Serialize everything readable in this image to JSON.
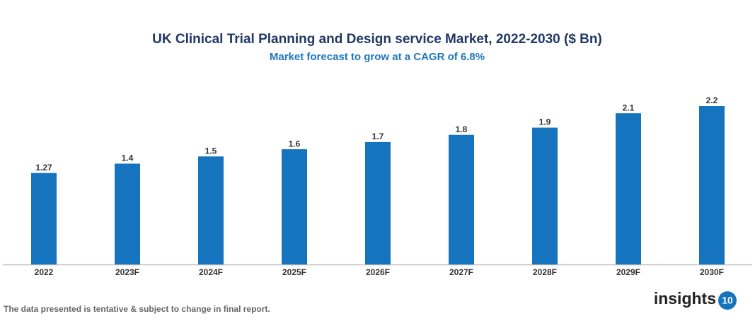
{
  "chart_data": {
    "type": "bar",
    "title": "UK Clinical Trial Planning and Design service Market, 2022-2030 ($ Bn)",
    "subtitle": "Market forecast to grow at a CAGR of 6.8%",
    "categories": [
      "2022",
      "2023F",
      "2024F",
      "2025F",
      "2026F",
      "2027F",
      "2028F",
      "2029F",
      "2030F"
    ],
    "values": [
      1.27,
      1.4,
      1.5,
      1.6,
      1.7,
      1.8,
      1.9,
      2.1,
      2.2
    ],
    "color": "#1674bf",
    "ylim": [
      0,
      2.2
    ],
    "grid": false
  },
  "footnote": "The data presented is tentative & subject to change in final report.",
  "logo": {
    "text": "insights",
    "badge": "10"
  }
}
